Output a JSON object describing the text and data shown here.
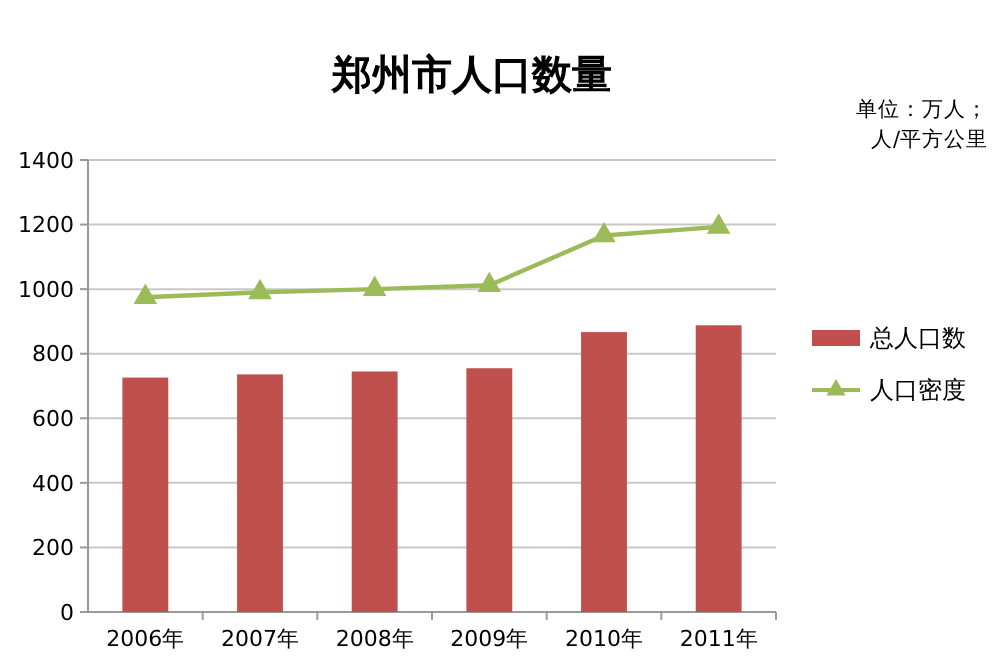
{
  "chart_data": {
    "type": "bar",
    "title": "郑州市人口数量",
    "annotations": [
      "单位：万人；",
      "人/平方公里"
    ],
    "categories": [
      "2006年",
      "2007年",
      "2008年",
      "2009年",
      "2010年",
      "2011年"
    ],
    "series": [
      {
        "name": "总人口数",
        "color": "#c0504d",
        "values": [
          726,
          736,
          745,
          755,
          867,
          888
        ]
      },
      {
        "name": "人口密度",
        "type": "line",
        "color": "#9bbb59",
        "marker": "triangle",
        "values": [
          975,
          990,
          1000,
          1012,
          1166,
          1193
        ]
      }
    ],
    "ylim": [
      0,
      1400
    ],
    "yticks": [
      0,
      200,
      400,
      600,
      800,
      1000,
      1200,
      1400
    ],
    "grid": "y",
    "legend": "right"
  }
}
